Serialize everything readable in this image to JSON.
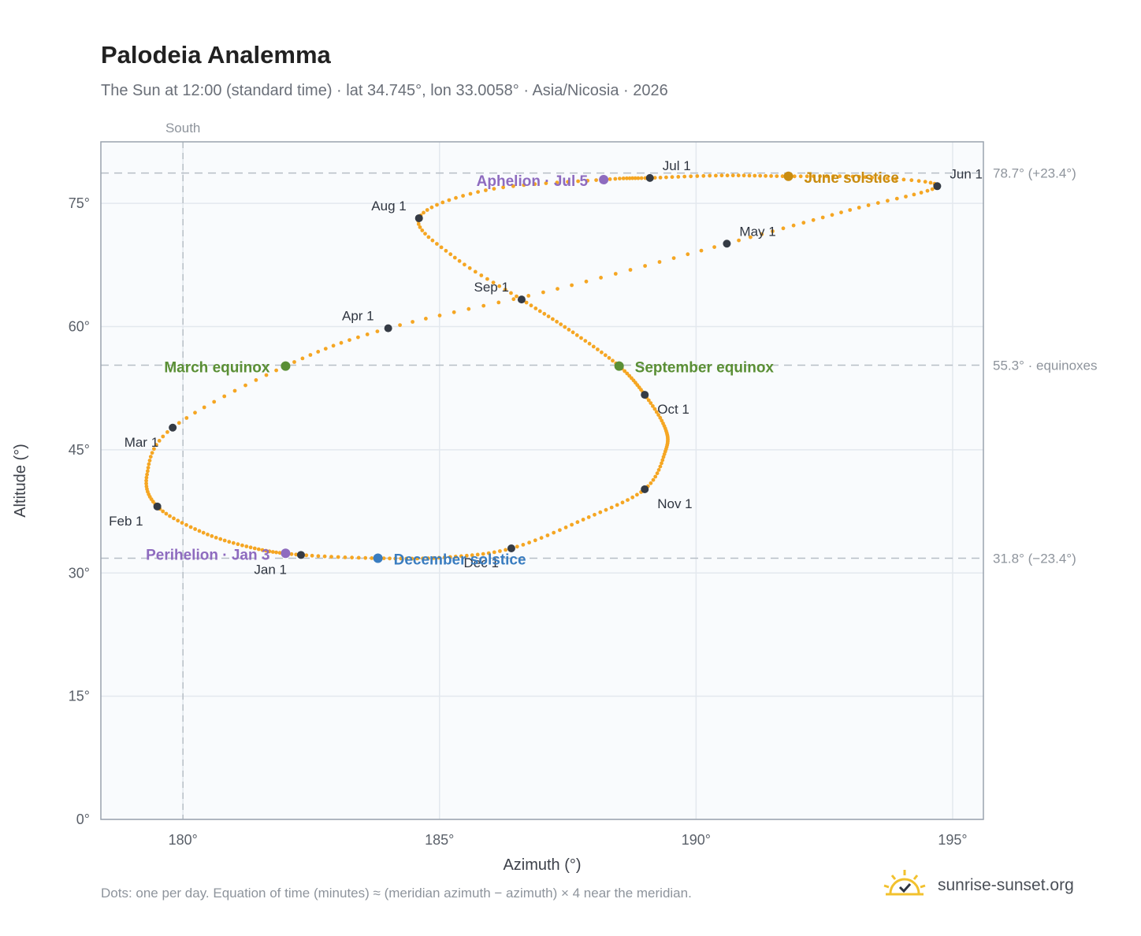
{
  "title": "Palodeia Analemma",
  "subtitle": "The Sun at 12:00 (standard time) · lat 34.745°, lon 33.0058° · Asia/Nicosia · 2026",
  "footnote": "Dots: one per day. Equation of time (minutes) ≈ (meridian azimuth − azimuth) × 4 near the meridian.",
  "brand": {
    "name": "sunrise-sunset.org",
    "icon": "sun-check-icon",
    "color": "#f2c12e"
  },
  "chart_data": {
    "type": "scatter",
    "title": "Palodeia Analemma",
    "xlabel": "Azimuth (°)",
    "ylabel": "Altitude (°)",
    "xlim": [
      178.4,
      195.6
    ],
    "ylim": [
      0,
      82.5
    ],
    "x_ticks": [
      180,
      185,
      190,
      195
    ],
    "x_tick_labels": [
      "180°",
      "185°",
      "190°",
      "195°"
    ],
    "y_ticks": [
      0,
      15,
      30,
      45,
      60,
      75
    ],
    "y_tick_labels": [
      "0°",
      "15°",
      "30°",
      "45°",
      "60°",
      "75°"
    ],
    "grid": true,
    "meridian": {
      "azimuth": 180,
      "label": "South"
    },
    "colors": {
      "path": "#f5a623",
      "month_marker": "#353b45",
      "perihelion": "#8e6bbf",
      "aphelion": "#8e6bbf",
      "march": "#5a8f35",
      "september": "#5a8f35",
      "june": "#c98c10",
      "december": "#3a7dc0",
      "refline": "#b7bec6",
      "plot_bg": "#f9fbfd",
      "frame": "#9aa3ae"
    },
    "reference_lines": [
      {
        "altitude": 78.7,
        "label": "78.7° (+23.4°)"
      },
      {
        "altitude": 55.3,
        "label": "55.3° · equinoxes"
      },
      {
        "altitude": 31.8,
        "label": "31.8° (−23.4°)"
      }
    ],
    "months": [
      {
        "label": "Jan 1",
        "azimuth": 182.3,
        "altitude": 32.2,
        "anchor": "end",
        "dx": -18,
        "dy": 24
      },
      {
        "label": "Feb 1",
        "azimuth": 179.5,
        "altitude": 38.1,
        "anchor": "end",
        "dx": -18,
        "dy": 24
      },
      {
        "label": "Mar 1",
        "azimuth": 179.8,
        "altitude": 47.7,
        "anchor": "end",
        "dx": -18,
        "dy": 24
      },
      {
        "label": "Apr 1",
        "azimuth": 184.0,
        "altitude": 59.8,
        "anchor": "end",
        "dx": -18,
        "dy": -10
      },
      {
        "label": "May 1",
        "azimuth": 190.6,
        "altitude": 70.1,
        "anchor": "start",
        "dx": 16,
        "dy": -10
      },
      {
        "label": "Jun 1",
        "azimuth": 194.7,
        "altitude": 77.1,
        "anchor": "start",
        "dx": 16,
        "dy": -10
      },
      {
        "label": "Jul 1",
        "azimuth": 189.1,
        "altitude": 78.1,
        "anchor": "start",
        "dx": 16,
        "dy": -10
      },
      {
        "label": "Aug 1",
        "azimuth": 184.6,
        "altitude": 73.2,
        "anchor": "end",
        "dx": -16,
        "dy": -10
      },
      {
        "label": "Sep 1",
        "azimuth": 186.6,
        "altitude": 63.3,
        "anchor": "end",
        "dx": -16,
        "dy": -10
      },
      {
        "label": "Oct 1",
        "azimuth": 189.0,
        "altitude": 51.7,
        "anchor": "start",
        "dx": 16,
        "dy": 24
      },
      {
        "label": "Nov 1",
        "azimuth": 189.0,
        "altitude": 40.2,
        "anchor": "start",
        "dx": 16,
        "dy": 24
      },
      {
        "label": "Dec 1",
        "azimuth": 186.4,
        "altitude": 33.0,
        "anchor": "end",
        "dx": -16,
        "dy": 24
      }
    ],
    "events": [
      {
        "label": "Perihelion · Jan 3",
        "azimuth": 182.0,
        "altitude": 32.4,
        "color": "#8e6bbf",
        "anchor": "end",
        "dx": -20,
        "dy": 8
      },
      {
        "label": "March equinox",
        "azimuth": 182.0,
        "altitude": 55.2,
        "color": "#5a8f35",
        "anchor": "end",
        "dx": -20,
        "dy": 8
      },
      {
        "label": "June solstice",
        "azimuth": 191.8,
        "altitude": 78.3,
        "color": "#c98c10",
        "anchor": "start",
        "dx": 20,
        "dy": 8
      },
      {
        "label": "Aphelion · Jul 5",
        "azimuth": 188.2,
        "altitude": 77.9,
        "color": "#8e6bbf",
        "anchor": "end",
        "dx": -20,
        "dy": 8
      },
      {
        "label": "September equinox",
        "azimuth": 188.5,
        "altitude": 55.2,
        "color": "#5a8f35",
        "anchor": "start",
        "dx": 20,
        "dy": 8
      },
      {
        "label": "December solstice",
        "azimuth": 183.8,
        "altitude": 31.8,
        "color": "#3a7dc0",
        "anchor": "start",
        "dx": 20,
        "dy": 8
      }
    ],
    "path_anchors": [
      [
        182.3,
        32.2
      ],
      [
        181.4,
        33.0
      ],
      [
        180.4,
        34.9
      ],
      [
        179.5,
        38.1
      ],
      [
        179.3,
        42.0
      ],
      [
        179.8,
        47.7
      ],
      [
        182.0,
        55.2
      ],
      [
        184.0,
        59.8
      ],
      [
        187.3,
        64.6
      ],
      [
        190.6,
        70.1
      ],
      [
        193.0,
        74.2
      ],
      [
        194.7,
        77.1
      ],
      [
        193.3,
        78.2
      ],
      [
        191.8,
        78.3
      ],
      [
        190.5,
        78.4
      ],
      [
        189.1,
        78.1
      ],
      [
        188.2,
        77.9
      ],
      [
        185.9,
        76.6
      ],
      [
        184.6,
        73.2
      ],
      [
        185.3,
        68.4
      ],
      [
        186.6,
        63.3
      ],
      [
        187.6,
        59.3
      ],
      [
        188.5,
        55.2
      ],
      [
        189.0,
        51.7
      ],
      [
        189.4,
        47.6
      ],
      [
        189.4,
        44.8
      ],
      [
        189.0,
        40.2
      ],
      [
        187.8,
        36.5
      ],
      [
        186.4,
        33.0
      ],
      [
        185.1,
        31.9
      ],
      [
        183.8,
        31.8
      ],
      [
        182.3,
        32.2
      ]
    ]
  }
}
